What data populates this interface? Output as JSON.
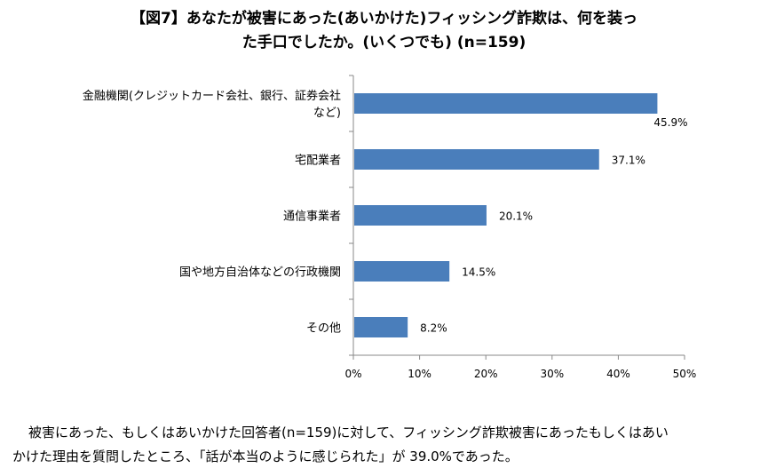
{
  "title_lines": [
    "【図7】あなたが被害にあった(あいかけた)フィッシング詐欺は、何を装っ",
    "た手口でしたか。(いくつでも) (n=159)"
  ],
  "chart_data": {
    "type": "bar",
    "orientation": "horizontal",
    "categories": [
      [
        "金融機関(クレジットカード会社、銀行、証券会社",
        "など)"
      ],
      [
        "宅配業者"
      ],
      [
        "通信事業者"
      ],
      [
        "国や地方自治体などの行政機関"
      ],
      [
        "その他"
      ]
    ],
    "values": [
      45.9,
      37.1,
      20.1,
      14.5,
      8.2
    ],
    "value_labels": [
      "45.9%",
      "37.1%",
      "20.1%",
      "14.5%",
      "8.2%"
    ],
    "xlim": [
      0,
      50
    ],
    "xticks": [
      0,
      10,
      20,
      30,
      40,
      50
    ],
    "xtick_labels": [
      "0%",
      "10%",
      "20%",
      "30%",
      "40%",
      "50%"
    ],
    "bar_color": "#4a7ebb",
    "grid": false,
    "legend": "none"
  },
  "note_lines": [
    "被害にあった、もしくはあいかけた回答者(n=159)に対して、フィッシング詐欺被害にあったもしくはあい",
    "かけた理由を質問したところ、「話が本当のように感じられた」が 39.0%であった。"
  ]
}
